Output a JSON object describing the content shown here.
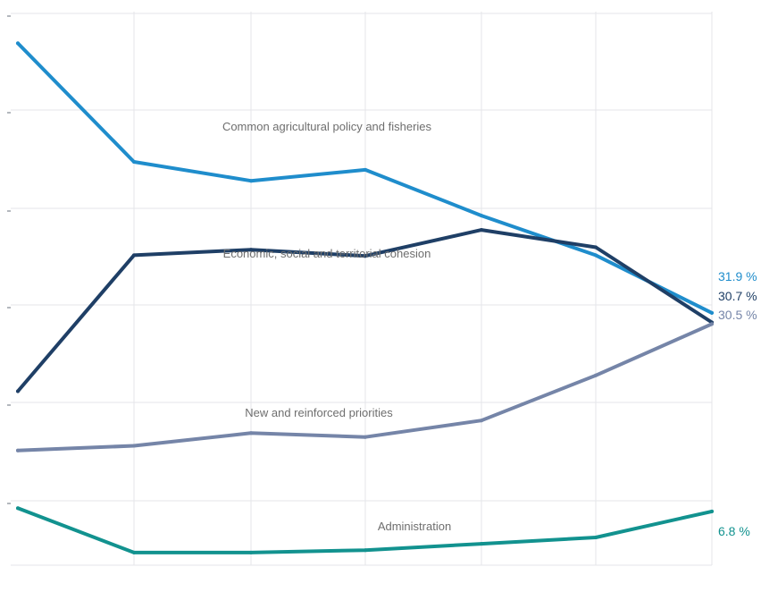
{
  "chart_data": {
    "type": "line",
    "title": "",
    "xlabel": "",
    "ylabel": "",
    "categories": [
      "",
      "",
      "",
      "",
      "",
      "",
      ""
    ],
    "ylim": [
      0,
      70
    ],
    "grid": true,
    "legend": "inline labels",
    "series": [
      {
        "name": "Common agricultural policy and fisheries",
        "color": "#1f8dcc",
        "values": [
          66.0,
          51.0,
          48.6,
          50.0,
          44.2,
          39.2,
          31.9
        ],
        "end_label": "31.9 %"
      },
      {
        "name": "Economic, social and territorial cohesion",
        "color": "#1f3f66",
        "values": [
          22.0,
          39.2,
          39.9,
          39.1,
          42.4,
          40.2,
          30.7
        ],
        "end_label": "30.7 %"
      },
      {
        "name": "New and reinforced priorities",
        "color": "#7585a8",
        "values": [
          14.5,
          15.1,
          16.7,
          16.2,
          18.3,
          24.0,
          30.5
        ],
        "end_label": "30.5 %"
      },
      {
        "name": "Administration",
        "color": "#12928f",
        "values": [
          7.2,
          1.6,
          1.6,
          1.9,
          2.7,
          3.5,
          6.8
        ],
        "end_label": "6.8 %"
      }
    ]
  }
}
